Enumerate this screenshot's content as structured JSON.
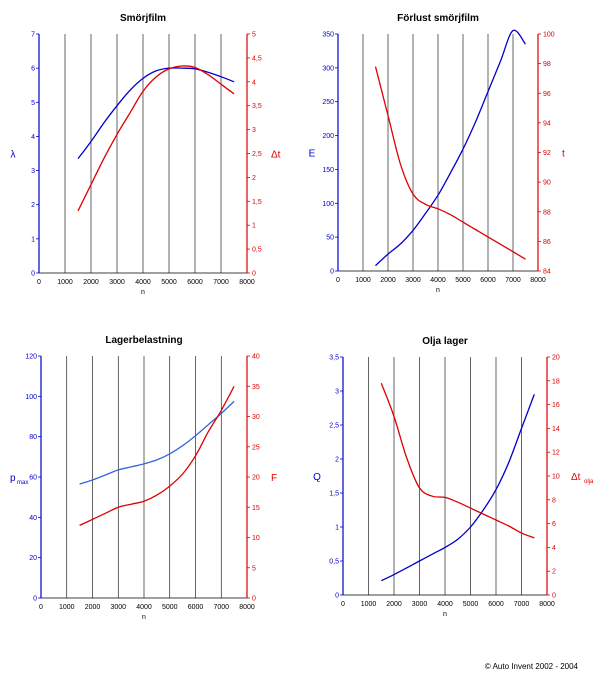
{
  "copyright": "© Auto Invent 2002 - 2004",
  "colors": {
    "left_axis": "#0000cc",
    "right_axis": "#dd0000",
    "grid": "#000000"
  },
  "chart_data": [
    {
      "type": "line",
      "title": "Smörjfilm",
      "xlabel": "n",
      "xlim": [
        0,
        8000
      ],
      "xticks": [
        "0",
        "1000",
        "2000",
        "3000",
        "4000",
        "5000",
        "6000",
        "7000",
        "8000"
      ],
      "ylabel_left": "λ",
      "ylim_left": [
        0,
        7
      ],
      "yticks_left": [
        "0",
        "1",
        "2",
        "3",
        "4",
        "5",
        "6",
        "7"
      ],
      "ylabel_right": "Δt",
      "ylim_right": [
        0,
        5
      ],
      "yticks_right": [
        "0",
        "0,5",
        "1",
        "1,5",
        "2",
        "2,5",
        "3",
        "3,5",
        "4",
        "4,5",
        "5"
      ],
      "grid": "vertical",
      "series": [
        {
          "axis": "left",
          "color": "#0000cc",
          "x": [
            1500,
            2000,
            2500,
            3000,
            3500,
            4000,
            4500,
            5000,
            5500,
            6000,
            6500,
            7000,
            7500
          ],
          "y": [
            3.35,
            3.85,
            4.4,
            4.9,
            5.35,
            5.7,
            5.92,
            6.0,
            6.0,
            5.98,
            5.88,
            5.75,
            5.6
          ]
        },
        {
          "axis": "right",
          "color": "#dd0000",
          "x": [
            1500,
            2000,
            2500,
            3000,
            3500,
            4000,
            4500,
            5000,
            5500,
            6000,
            6500,
            7000,
            7500
          ],
          "y": [
            1.3,
            1.85,
            2.4,
            2.9,
            3.35,
            3.8,
            4.1,
            4.27,
            4.33,
            4.3,
            4.15,
            3.95,
            3.75
          ]
        }
      ]
    },
    {
      "type": "line",
      "title": "Förlust smörjfilm",
      "xlabel": "n",
      "xlim": [
        0,
        8000
      ],
      "xticks": [
        "0",
        "1000",
        "2000",
        "3000",
        "4000",
        "5000",
        "6000",
        "7000",
        "8000"
      ],
      "ylabel_left": "E",
      "ylim_left": [
        0,
        350
      ],
      "yticks_left": [
        "0",
        "50",
        "100",
        "150",
        "200",
        "250",
        "300",
        "350"
      ],
      "ylabel_right": "t",
      "ylim_right": [
        84,
        100
      ],
      "yticks_right": [
        "84",
        "86",
        "88",
        "90",
        "92",
        "94",
        "96",
        "98",
        "100"
      ],
      "grid": "vertical",
      "series": [
        {
          "axis": "left",
          "color": "#0000cc",
          "x": [
            1500,
            2000,
            2500,
            3000,
            3500,
            4000,
            4500,
            5000,
            5500,
            6000,
            6500,
            7000,
            7500
          ],
          "y": [
            8,
            25,
            40,
            60,
            85,
            112,
            145,
            180,
            220,
            265,
            310,
            355,
            335
          ]
        },
        {
          "axis": "right",
          "color": "#dd0000",
          "x": [
            1500,
            2000,
            2500,
            3000,
            3500,
            4000,
            4500,
            5000,
            5500,
            6000,
            6500,
            7000,
            7500
          ],
          "y": [
            97.8,
            94.5,
            91.2,
            89.2,
            88.5,
            88.2,
            87.8,
            87.3,
            86.8,
            86.3,
            85.8,
            85.3,
            84.8
          ]
        }
      ]
    },
    {
      "type": "line",
      "title": "Lagerbelastning",
      "xlabel": "n",
      "xlim": [
        0,
        8000
      ],
      "xticks": [
        "0",
        "1000",
        "2000",
        "3000",
        "4000",
        "5000",
        "6000",
        "7000",
        "8000"
      ],
      "ylabel_left": "p",
      "ylabel_left_sub": "max",
      "ylim_left": [
        0,
        120
      ],
      "yticks_left": [
        "0",
        "20",
        "40",
        "60",
        "80",
        "100",
        "120"
      ],
      "ylabel_right": "F",
      "ylim_right": [
        0,
        40
      ],
      "yticks_right": [
        "0",
        "5",
        "10",
        "15",
        "20",
        "25",
        "30",
        "35",
        "40"
      ],
      "grid": "vertical",
      "series": [
        {
          "axis": "left",
          "color": "#3366dd",
          "x": [
            1500,
            2000,
            2500,
            3000,
            3500,
            4000,
            4500,
            5000,
            5500,
            6000,
            6500,
            7000,
            7500
          ],
          "y": [
            56.5,
            58.5,
            61,
            63.5,
            65,
            66.5,
            68.5,
            71.5,
            75.5,
            80.5,
            86,
            91.5,
            97.5
          ]
        },
        {
          "axis": "right",
          "color": "#dd0000",
          "x": [
            1500,
            2000,
            2500,
            3000,
            3500,
            4000,
            4500,
            5000,
            5500,
            6000,
            6500,
            7000,
            7500
          ],
          "y": [
            12,
            13,
            14,
            15,
            15.5,
            16,
            17,
            18.5,
            20.5,
            23.5,
            27.5,
            31,
            35
          ]
        }
      ]
    },
    {
      "type": "line",
      "title": "Olja lager",
      "xlabel": "n",
      "xlim": [
        0,
        8000
      ],
      "xticks": [
        "0",
        "1000",
        "2000",
        "3000",
        "4000",
        "5000",
        "6000",
        "7000",
        "8000"
      ],
      "ylabel_left": "Q",
      "ylim_left": [
        0,
        3.5
      ],
      "yticks_left": [
        "0",
        "0,5",
        "1",
        "1,5",
        "2",
        "2,5",
        "3",
        "3,5"
      ],
      "ylabel_right": "Δt",
      "ylabel_right_sub": "olja",
      "ylim_right": [
        0,
        20
      ],
      "yticks_right": [
        "0",
        "2",
        "4",
        "6",
        "8",
        "10",
        "12",
        "14",
        "16",
        "18",
        "20"
      ],
      "grid": "vertical",
      "series": [
        {
          "axis": "left",
          "color": "#0000cc",
          "x": [
            1500,
            2000,
            2500,
            3000,
            3500,
            4000,
            4500,
            5000,
            5500,
            6000,
            6500,
            7000,
            7500
          ],
          "y": [
            0.21,
            0.3,
            0.4,
            0.5,
            0.6,
            0.7,
            0.82,
            1.0,
            1.25,
            1.55,
            1.95,
            2.45,
            2.95
          ]
        },
        {
          "axis": "right",
          "color": "#dd0000",
          "x": [
            1500,
            2000,
            2500,
            3000,
            3500,
            4000,
            4500,
            5000,
            5500,
            6000,
            6500,
            7000,
            7500
          ],
          "y": [
            17.8,
            15.0,
            11.5,
            9.0,
            8.3,
            8.2,
            7.8,
            7.3,
            6.8,
            6.3,
            5.8,
            5.2,
            4.8
          ]
        }
      ]
    }
  ]
}
